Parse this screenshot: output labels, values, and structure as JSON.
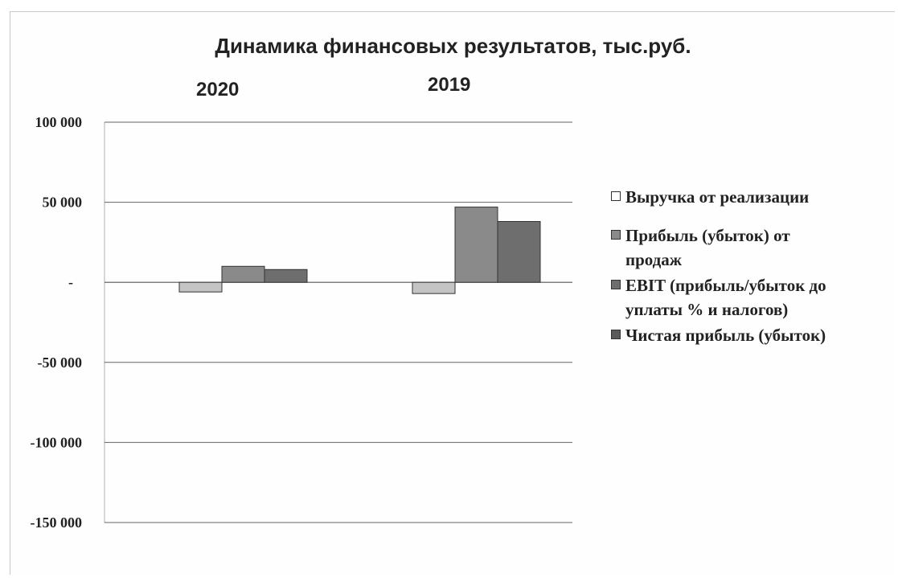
{
  "chart_data": {
    "type": "bar",
    "title": "Динамика финансовых результатов, тыс.руб.",
    "categories": [
      "2020",
      "2019"
    ],
    "series": [
      {
        "name": "Выручка от реализации",
        "values": [
          -6000,
          -7000
        ],
        "color": "#c4c4c4"
      },
      {
        "name": "Прибыль (убыток) от продаж",
        "values": [
          10000,
          47000
        ],
        "color": "#8a8a8a"
      },
      {
        "name": "EBIT (прибыль/убыток до уплаты % и налогов)",
        "values": [
          8000,
          38000
        ],
        "color": "#6e6e6e"
      },
      {
        "name": "Чистая прибыль (убыток)",
        "values": [
          0,
          0
        ],
        "color": "#5a5a5a"
      }
    ],
    "y_ticks": [
      {
        "value": 100000,
        "label": "100 000"
      },
      {
        "value": 50000,
        "label": "50 000"
      },
      {
        "value": 0,
        "label": "-"
      },
      {
        "value": -50000,
        "label": "-50 000"
      },
      {
        "value": -100000,
        "label": "-100 000"
      },
      {
        "value": -150000,
        "label": "-150 000"
      }
    ],
    "ylim": [
      -150000,
      100000
    ],
    "grid": true,
    "legend_position": "right",
    "legend": {
      "item1": "Выручка от реализации",
      "item2_line1": "Прибыль (убыток) от",
      "item2_line2": "продаж",
      "item3_line1": "EBIT (прибыль/убыток до",
      "item3_line2": "уплаты % и налогов)",
      "item4": "Чистая прибыль (убыток)"
    }
  }
}
